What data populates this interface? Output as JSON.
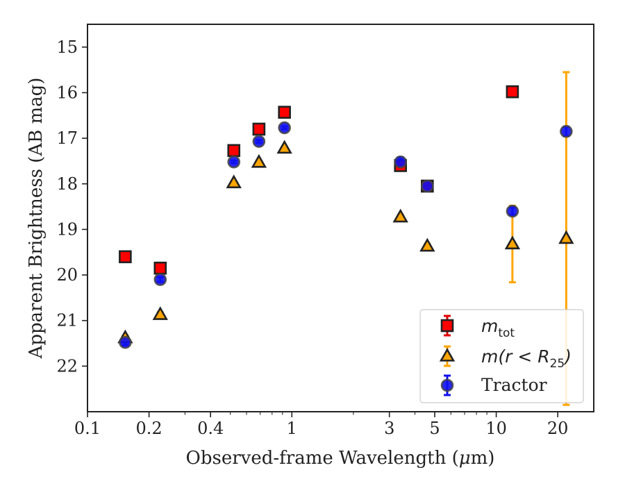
{
  "chart_data": {
    "type": "scatter",
    "title": "",
    "xlabel_pre": "Observed-frame Wavelength (",
    "xlabel_mu": "μ",
    "xlabel_post": "m)",
    "ylabel": "Apparent Brightness (AB mag)",
    "xscale": "log",
    "xlim": [
      0.1,
      30
    ],
    "ylim": [
      23.0,
      14.5
    ],
    "y_inverted": true,
    "xticks": [
      0.1,
      0.2,
      0.4,
      1,
      3,
      5,
      10,
      20
    ],
    "xtick_labels": [
      "0.1",
      "0.2",
      "0.4",
      "1",
      "3",
      "5",
      "10",
      "20"
    ],
    "yticks": [
      15,
      16,
      17,
      18,
      19,
      20,
      21,
      22
    ],
    "ytick_labels": [
      "15",
      "16",
      "17",
      "18",
      "19",
      "20",
      "21",
      "22"
    ],
    "grid": false,
    "legend_position": "lower right",
    "series": [
      {
        "name": "m_tot",
        "legend_main": "m",
        "legend_sub": "tot",
        "marker": "square",
        "color": "#ff0000",
        "edge": "#222222",
        "errcolor": "#e00000",
        "points": [
          {
            "x": 0.153,
            "y": 19.6,
            "err": 0.05
          },
          {
            "x": 0.227,
            "y": 19.85,
            "err": 0.05
          },
          {
            "x": 0.52,
            "y": 17.27,
            "err": 0.03
          },
          {
            "x": 0.69,
            "y": 16.8,
            "err": 0.03
          },
          {
            "x": 0.92,
            "y": 16.43,
            "err": 0.03
          },
          {
            "x": 3.4,
            "y": 17.6,
            "err": 0.05
          },
          {
            "x": 4.6,
            "y": 18.05,
            "err": 0.05
          },
          {
            "x": 12.0,
            "y": 15.98,
            "err": 0.03
          }
        ]
      },
      {
        "name": "m(r < R_25)",
        "legend_main": "m(r < R",
        "legend_sub": "25",
        "legend_tail": ")",
        "marker": "triangle",
        "color": "#ffa500",
        "edge": "#222222",
        "errcolor": "#ffa500",
        "points": [
          {
            "x": 0.153,
            "y": 21.38,
            "err": 0.05
          },
          {
            "x": 0.227,
            "y": 20.87,
            "err": 0.05
          },
          {
            "x": 0.52,
            "y": 17.98,
            "err": 0.03
          },
          {
            "x": 0.69,
            "y": 17.53,
            "err": 0.03
          },
          {
            "x": 0.92,
            "y": 17.22,
            "err": 0.03
          },
          {
            "x": 3.4,
            "y": 18.73,
            "err": 0.05
          },
          {
            "x": 4.6,
            "y": 19.37,
            "err": 0.05
          },
          {
            "x": 12.0,
            "y": 19.32,
            "err": 0.84
          },
          {
            "x": 22.0,
            "y": 19.2,
            "err": 3.65
          }
        ]
      },
      {
        "name": "Tractor",
        "legend_main": "Tractor",
        "marker": "circle",
        "color": "#1010ee",
        "edge": "#444444",
        "errcolor": "#1010ee",
        "points": [
          {
            "x": 0.153,
            "y": 21.48,
            "err": 0.06
          },
          {
            "x": 0.227,
            "y": 20.1,
            "err": 0.05
          },
          {
            "x": 0.52,
            "y": 17.52,
            "err": 0.03
          },
          {
            "x": 0.69,
            "y": 17.07,
            "err": 0.03
          },
          {
            "x": 0.92,
            "y": 16.77,
            "err": 0.03
          },
          {
            "x": 3.4,
            "y": 17.52,
            "err": 0.1
          },
          {
            "x": 4.6,
            "y": 18.05,
            "err": 0.05
          },
          {
            "x": 12.0,
            "y": 18.6,
            "err": 0.08
          },
          {
            "x": 22.0,
            "y": 16.85,
            "err": 0.1
          }
        ]
      }
    ]
  }
}
